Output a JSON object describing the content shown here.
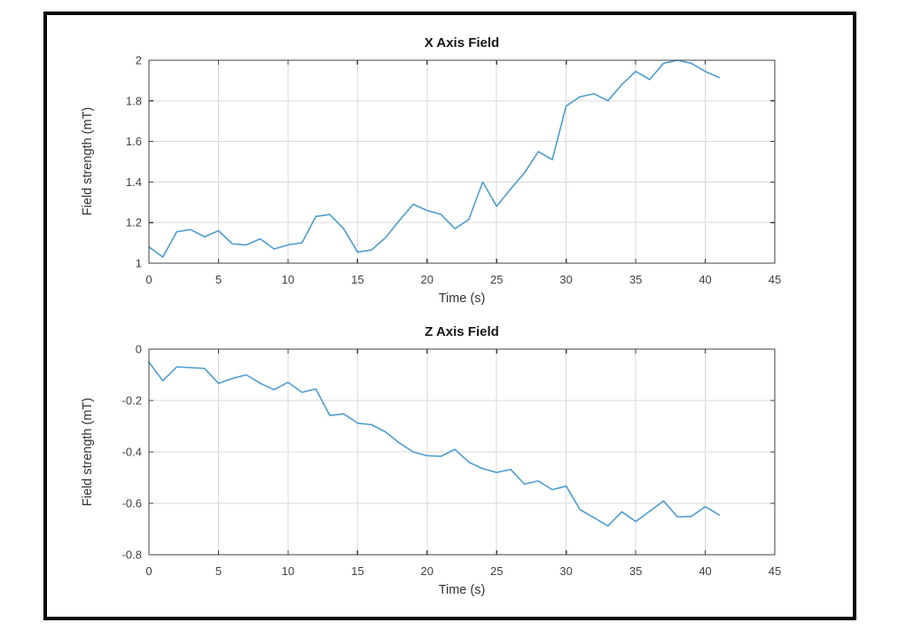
{
  "figure": {
    "background": "#ffffff",
    "frame_color": "#050505",
    "axis_color": "#3f3f3f",
    "grid_color": "#d9d9d9",
    "tick_label_color": "#404040"
  },
  "chart_data": [
    {
      "type": "line",
      "title": "X Axis Field",
      "xlabel": "Time (s)",
      "ylabel": "Field strength (mT)",
      "xlim": [
        0,
        45
      ],
      "ylim": [
        1,
        2
      ],
      "xticks": [
        0,
        5,
        10,
        15,
        20,
        25,
        30,
        35,
        40,
        45
      ],
      "yticks": [
        1,
        1.2,
        1.4,
        1.6,
        1.8,
        2
      ],
      "xtick_labels": [
        "0",
        "5",
        "10",
        "15",
        "20",
        "25",
        "30",
        "35",
        "40",
        "45"
      ],
      "ytick_labels": [
        "1",
        "1.2",
        "1.4",
        "1.6",
        "1.8",
        "2"
      ],
      "grid": true,
      "legend": null,
      "line_color": "#4d9cd0",
      "x": [
        0,
        1,
        2,
        3,
        4,
        5,
        6,
        7,
        8,
        9,
        10,
        11,
        12,
        13,
        14,
        15,
        16,
        17,
        18,
        19,
        20,
        21,
        22,
        23,
        24,
        25,
        26,
        27,
        28,
        29,
        30,
        31,
        32,
        33,
        34,
        35,
        36,
        37,
        38,
        39,
        40,
        41
      ],
      "y": [
        1.08,
        1.03,
        1.155,
        1.165,
        1.13,
        1.16,
        1.095,
        1.09,
        1.12,
        1.07,
        1.09,
        1.1,
        1.23,
        1.24,
        1.17,
        1.055,
        1.065,
        1.125,
        1.21,
        1.29,
        1.26,
        1.24,
        1.17,
        1.215,
        1.4,
        1.28,
        1.365,
        1.445,
        1.55,
        1.51,
        1.775,
        1.82,
        1.835,
        1.8,
        1.88,
        1.945,
        1.905,
        1.985,
        2.0,
        1.985,
        1.945,
        1.915
      ]
    },
    {
      "type": "line",
      "title": "Z Axis Field",
      "xlabel": "Time (s)",
      "ylabel": "Field strength (mT)",
      "xlim": [
        0,
        45
      ],
      "ylim": [
        -0.8,
        0
      ],
      "xticks": [
        0,
        5,
        10,
        15,
        20,
        25,
        30,
        35,
        40,
        45
      ],
      "yticks": [
        -0.8,
        -0.6,
        -0.4,
        -0.2,
        0
      ],
      "xtick_labels": [
        "0",
        "5",
        "10",
        "15",
        "20",
        "25",
        "30",
        "35",
        "40",
        "45"
      ],
      "ytick_labels": [
        "-0.8",
        "-0.6",
        "-0.4",
        "-0.2",
        "0"
      ],
      "grid": true,
      "legend": null,
      "line_color": "#4d9cd0",
      "x": [
        0,
        1,
        2,
        3,
        4,
        5,
        6,
        7,
        8,
        9,
        10,
        11,
        12,
        13,
        14,
        15,
        16,
        17,
        18,
        19,
        20,
        21,
        22,
        23,
        24,
        25,
        26,
        27,
        28,
        29,
        30,
        31,
        32,
        33,
        34,
        35,
        36,
        37,
        38,
        39,
        40,
        41
      ],
      "y": [
        -0.051,
        -0.123,
        -0.069,
        -0.072,
        -0.075,
        -0.133,
        -0.114,
        -0.1,
        -0.133,
        -0.158,
        -0.129,
        -0.168,
        -0.155,
        -0.258,
        -0.252,
        -0.288,
        -0.294,
        -0.322,
        -0.365,
        -0.4,
        -0.415,
        -0.417,
        -0.39,
        -0.44,
        -0.465,
        -0.48,
        -0.468,
        -0.525,
        -0.513,
        -0.547,
        -0.533,
        -0.625,
        -0.656,
        -0.688,
        -0.633,
        -0.671,
        -0.631,
        -0.591,
        -0.653,
        -0.651,
        -0.613,
        -0.645
      ]
    }
  ]
}
